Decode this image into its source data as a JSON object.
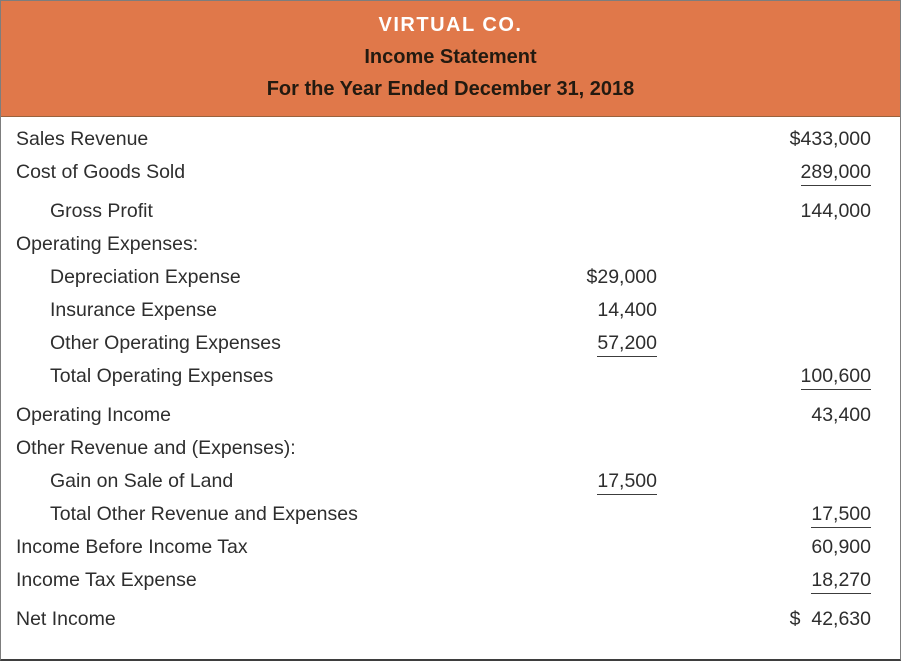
{
  "header": {
    "company": "VIRTUAL CO.",
    "statement": "Income Statement",
    "period": "For the Year Ended December 31, 2018"
  },
  "colors": {
    "header_bg": "#E0784A",
    "company_text": "#FFFFFF",
    "header_text": "#231A10",
    "body_text": "#2E2E2E",
    "rule": "#3C3C3C"
  },
  "rows": [
    {
      "label": "Sales Revenue",
      "indent": 0,
      "col2": "",
      "col3": "$433,000",
      "ul2": false,
      "ul3": false,
      "gap": false
    },
    {
      "label": "Cost of Goods Sold",
      "indent": 0,
      "col2": "",
      "col3": "289,000",
      "ul2": false,
      "ul3": true,
      "gap": false
    },
    {
      "label": "Gross Profit",
      "indent": 1,
      "col2": "",
      "col3": "144,000",
      "ul2": false,
      "ul3": false,
      "gap": true
    },
    {
      "label": "Operating Expenses:",
      "indent": 0,
      "col2": "",
      "col3": "",
      "ul2": false,
      "ul3": false,
      "gap": false
    },
    {
      "label": "Depreciation Expense",
      "indent": 1,
      "col2": "$29,000",
      "col3": "",
      "ul2": false,
      "ul3": false,
      "gap": false
    },
    {
      "label": "Insurance Expense",
      "indent": 1,
      "col2": "14,400",
      "col3": "",
      "ul2": false,
      "ul3": false,
      "gap": false
    },
    {
      "label": "Other Operating Expenses",
      "indent": 1,
      "col2": "57,200",
      "col3": "",
      "ul2": true,
      "ul3": false,
      "gap": false
    },
    {
      "label": "Total Operating Expenses",
      "indent": 1,
      "col2": "",
      "col3": "100,600",
      "ul2": false,
      "ul3": true,
      "gap": false
    },
    {
      "label": "Operating Income",
      "indent": 0,
      "col2": "",
      "col3": "43,400",
      "ul2": false,
      "ul3": false,
      "gap": true
    },
    {
      "label": "Other Revenue and (Expenses):",
      "indent": 0,
      "col2": "",
      "col3": "",
      "ul2": false,
      "ul3": false,
      "gap": false
    },
    {
      "label": "Gain on Sale of Land",
      "indent": 1,
      "col2": "17,500",
      "col3": "",
      "ul2": true,
      "ul3": false,
      "gap": false
    },
    {
      "label": "Total Other Revenue and Expenses",
      "indent": 1,
      "col2": "",
      "col3": "17,500",
      "ul2": false,
      "ul3": true,
      "gap": false
    },
    {
      "label": "Income Before Income Tax",
      "indent": 0,
      "col2": "",
      "col3": "60,900",
      "ul2": false,
      "ul3": false,
      "gap": false
    },
    {
      "label": "Income Tax Expense",
      "indent": 0,
      "col2": "",
      "col3": "18,270",
      "ul2": false,
      "ul3": true,
      "gap": false
    },
    {
      "label": "Net Income",
      "indent": 0,
      "col2": "",
      "col3": "$  42,630",
      "ul2": false,
      "ul3": false,
      "gap": true
    }
  ]
}
